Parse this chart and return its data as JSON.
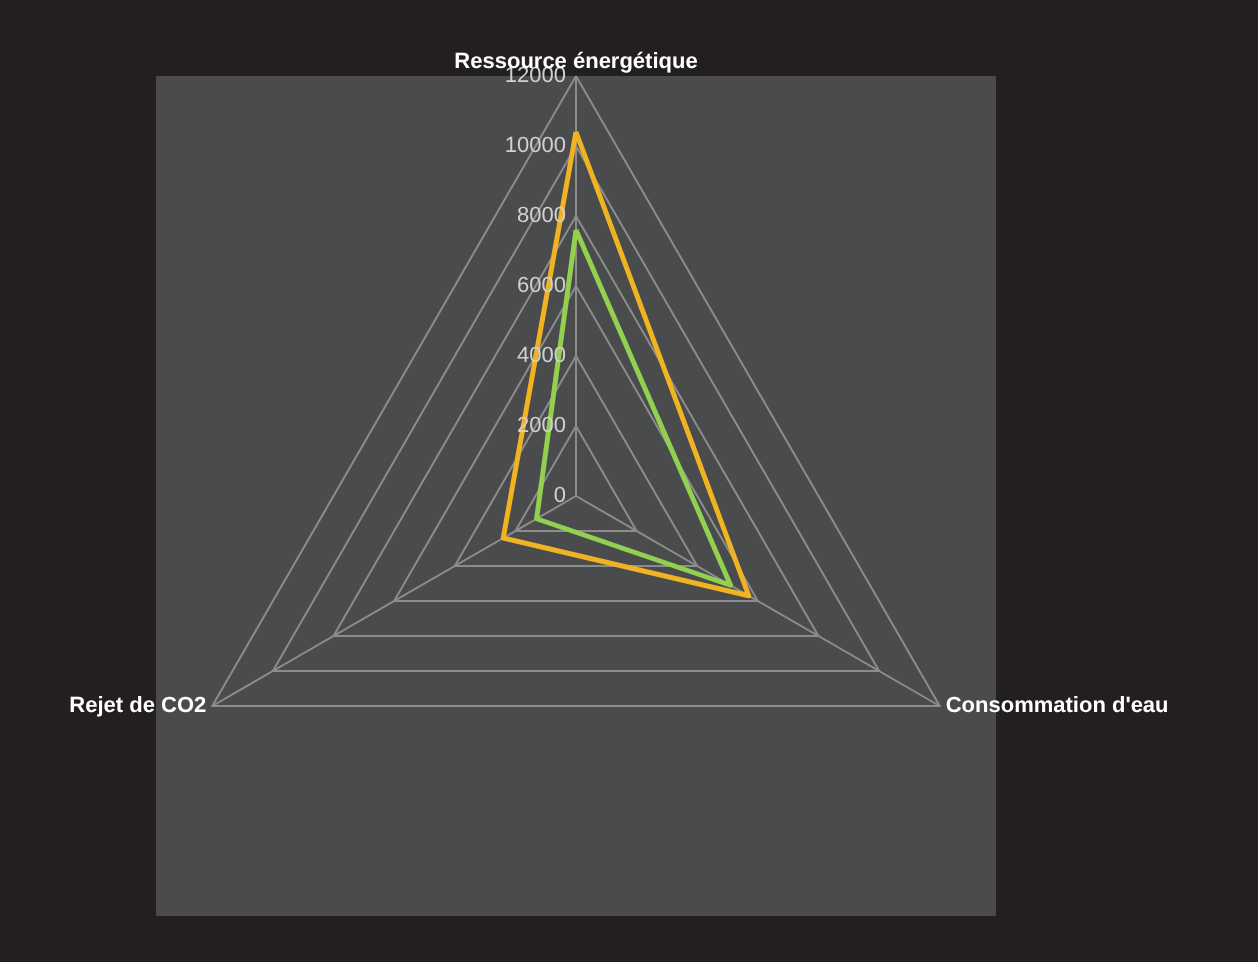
{
  "chart_data": {
    "type": "radar",
    "categories": [
      "Ressource énergétique",
      "Consommation d'eau",
      "Rejet de CO2"
    ],
    "series": [
      {
        "color": "#f0b323",
        "values": [
          10400,
          5700,
          2400
        ]
      },
      {
        "color": "#92d050",
        "values": [
          7600,
          5100,
          1300
        ]
      }
    ],
    "ylim": [
      0,
      12000
    ],
    "yticks": [
      0,
      2000,
      4000,
      6000,
      8000,
      10000,
      12000
    ],
    "grid": true
  }
}
